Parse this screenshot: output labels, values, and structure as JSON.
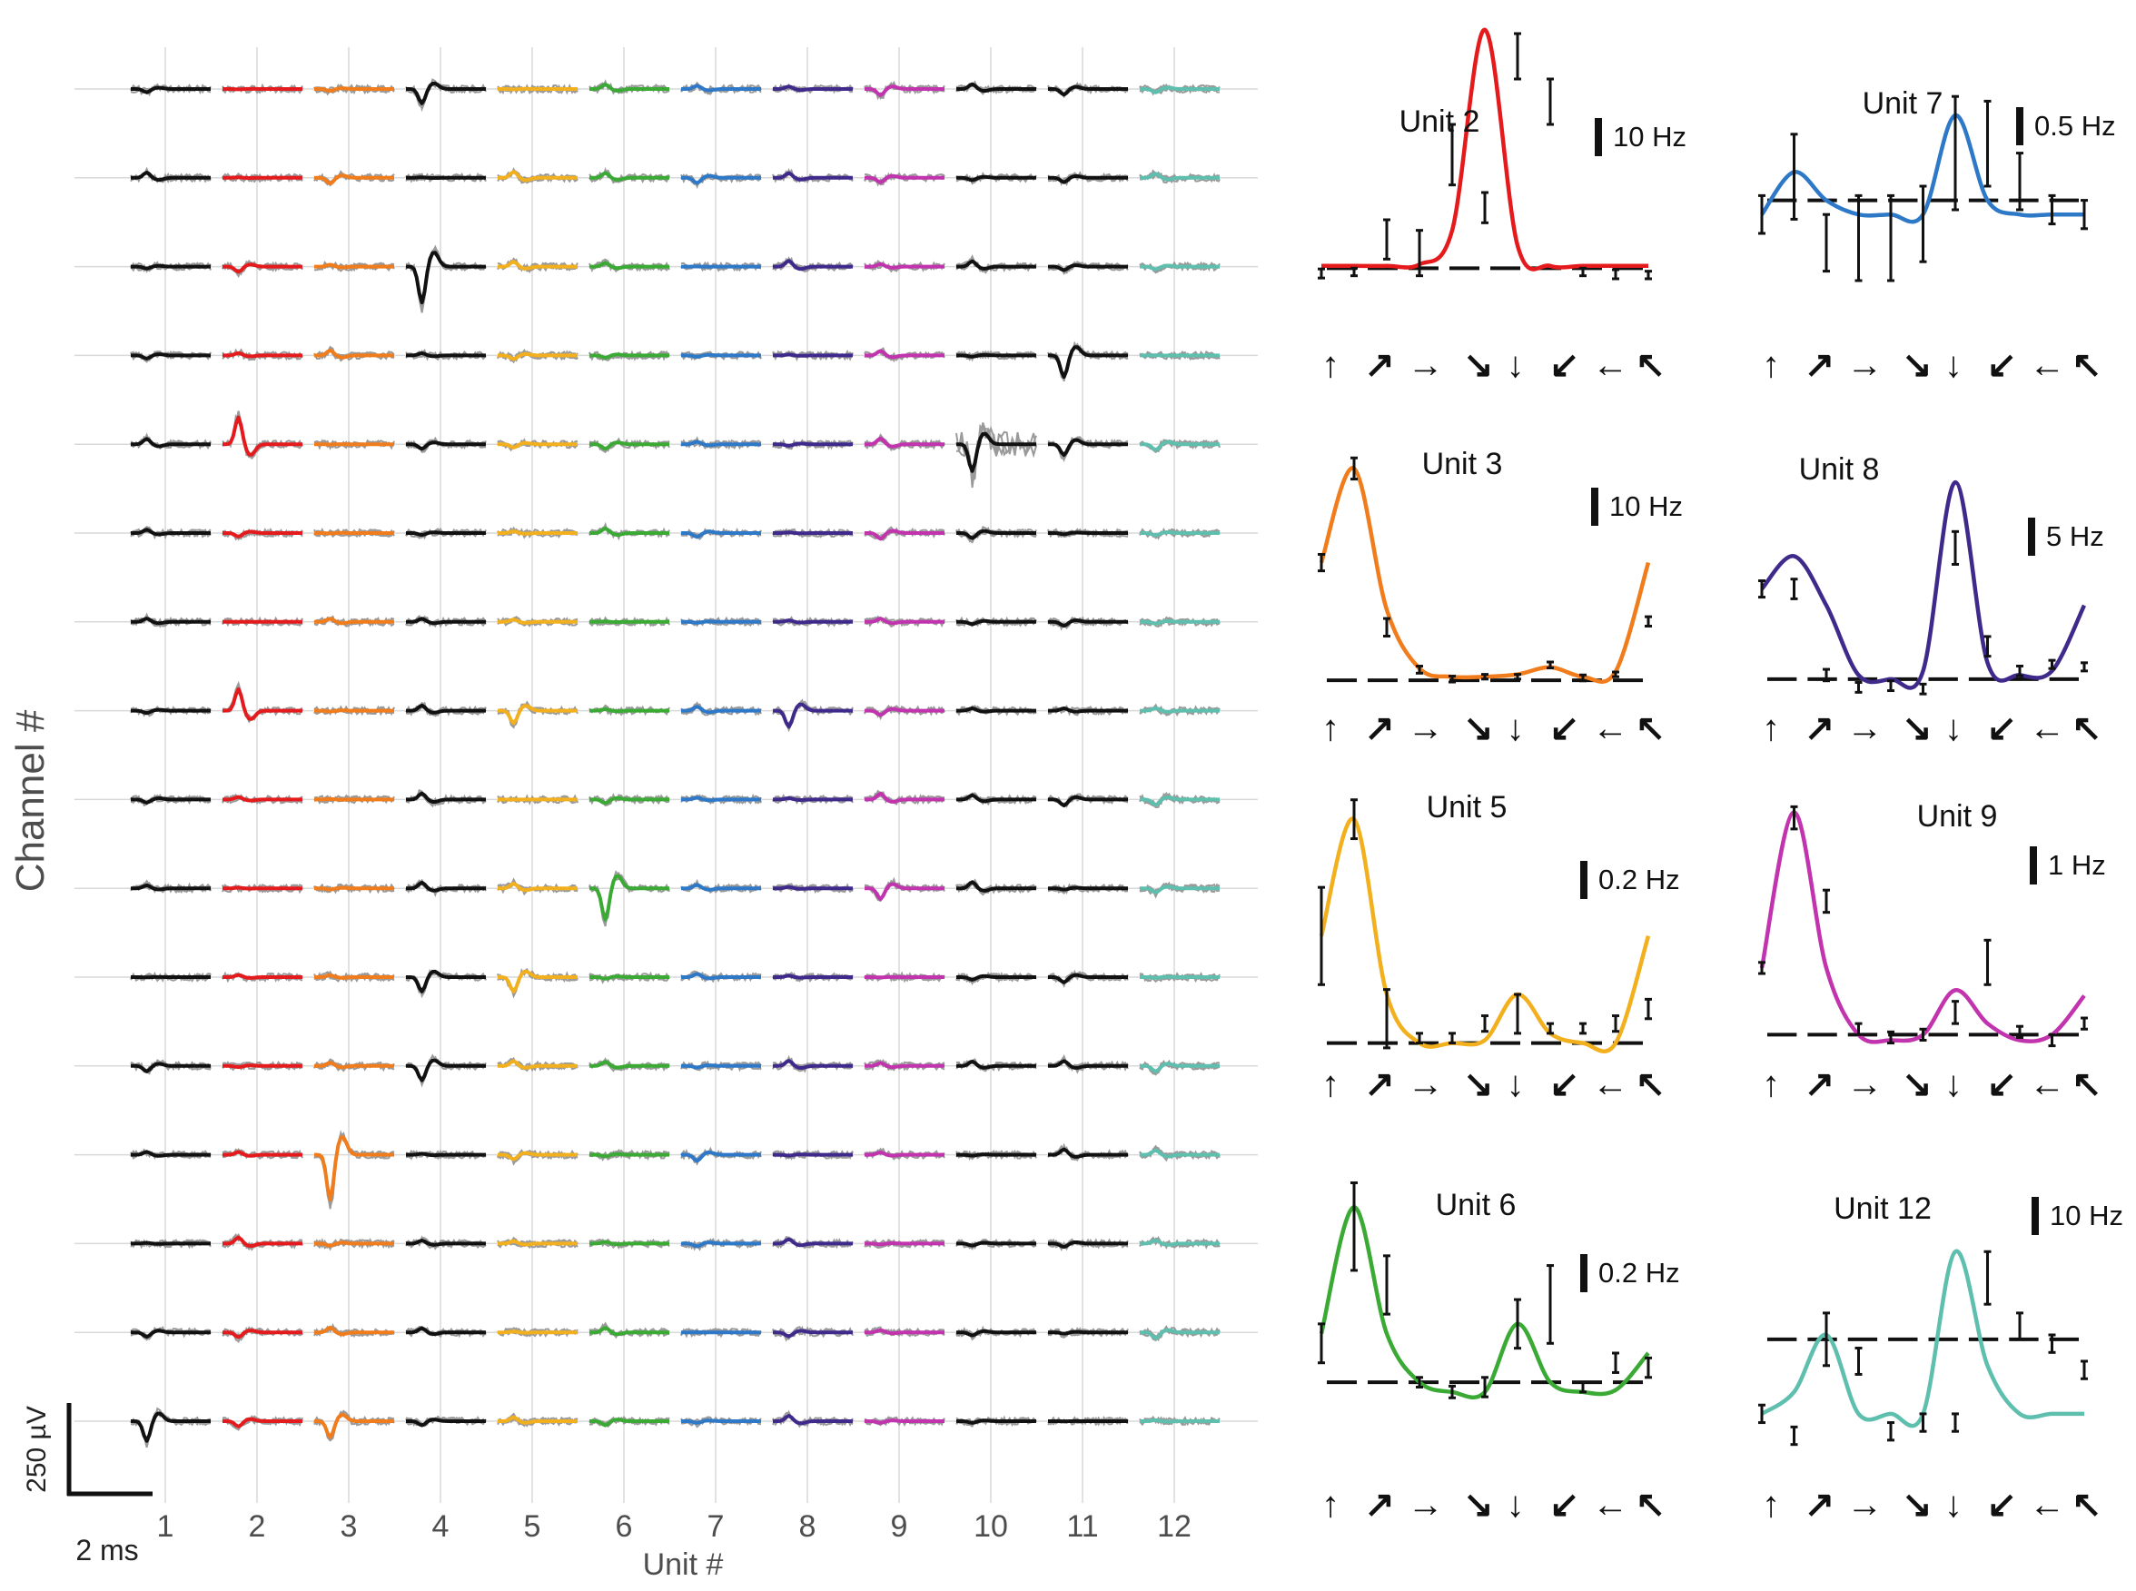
{
  "labels": {
    "ylabel": "Channel #",
    "xlabel": "Unit #",
    "scale_voltage": "250 µV",
    "scale_time": "2 ms"
  },
  "colors": {
    "grid": "#d9d9d9",
    "trace_gray": "#9a9a9a",
    "units": [
      "#111111",
      "#e41a1c",
      "#f07c1c",
      "#111111",
      "#f2b01e",
      "#3aaa35",
      "#2e78c8",
      "#3f2a8c",
      "#c233ae",
      "#111111",
      "#111111",
      "#5ebfae"
    ]
  },
  "chart_data": [
    {
      "type": "waveform-grid",
      "title": "",
      "xlabel": "Unit #",
      "ylabel": "Channel #",
      "units": [
        "1",
        "2",
        "3",
        "4",
        "5",
        "6",
        "7",
        "8",
        "9",
        "10",
        "11",
        "12"
      ],
      "channels": 16,
      "scale_bar": {
        "voltage": "250 µV",
        "time": "2 ms"
      }
    },
    {
      "type": "line",
      "panel": "tuning",
      "title": "Unit 2",
      "scale": "10 Hz",
      "color": "#e41a1c",
      "directions": [
        "↑",
        "↗",
        "→",
        "↘",
        "↓",
        "↙",
        "←",
        "↖"
      ],
      "x": [
        0,
        0.7,
        1.4,
        2.1,
        2.8,
        3.5,
        4.2,
        4.9,
        5.6,
        6.3,
        7.0
      ],
      "curve": [
        0.3,
        0.3,
        0.3,
        0.5,
        5.0,
        31.5,
        3.0,
        0.3,
        0.3,
        0.3,
        0.3
      ],
      "points": [
        -0.7,
        -0.5,
        3.8,
        2.0,
        15.0,
        8.0,
        28.0,
        22.0,
        -0.5,
        -0.8,
        -0.9
      ],
      "errors": [
        0.6,
        0.5,
        2.6,
        3.0,
        4.0,
        2.0,
        3.0,
        3.0,
        0.5,
        0.6,
        0.5
      ],
      "baseline": 0,
      "ylim": [
        -2,
        34
      ]
    },
    {
      "type": "line",
      "panel": "tuning",
      "title": "Unit 3",
      "scale": "10 Hz",
      "color": "#f07c1c",
      "directions": [
        "↑",
        "↗",
        "→",
        "↘",
        "↓",
        "↙",
        "←",
        "↖"
      ],
      "x": [
        0,
        0.7,
        1.4,
        2.1,
        2.8,
        3.5,
        4.2,
        4.9,
        5.6,
        6.3,
        7.0
      ],
      "curve": [
        20,
        36,
        12,
        2,
        0.6,
        0.6,
        1.0,
        2.2,
        0.6,
        1.5,
        20
      ],
      "points": [
        20,
        36,
        9,
        1.8,
        0.2,
        0.6,
        0.6,
        2.6,
        0.4,
        1.0,
        10
      ],
      "errors": [
        1.4,
        1.8,
        1.5,
        0.6,
        0.5,
        0.4,
        0.4,
        0.5,
        0.5,
        0.4,
        0.8
      ],
      "baseline": 0,
      "ylim": [
        -4,
        40
      ]
    },
    {
      "type": "line",
      "panel": "tuning",
      "title": "Unit 5",
      "scale": "0.2 Hz",
      "color": "#f2b01e",
      "directions": [
        "↑",
        "↗",
        "→",
        "↘",
        "↓",
        "↙",
        "←",
        "↖"
      ],
      "x": [
        0,
        0.7,
        1.4,
        2.1,
        2.8,
        3.5,
        4.2,
        4.9,
        5.6,
        6.3,
        7.0
      ],
      "curve": [
        1.1,
        2.3,
        0.5,
        0.0,
        0.0,
        0.03,
        0.5,
        0.1,
        0.0,
        0.0,
        1.1
      ],
      "points": [
        1.1,
        2.3,
        0.25,
        0.05,
        0.05,
        0.2,
        0.3,
        0.15,
        0.15,
        0.2,
        0.35
      ],
      "errors": [
        0.5,
        0.2,
        0.3,
        0.05,
        0.05,
        0.08,
        0.2,
        0.05,
        0.05,
        0.08,
        0.1
      ],
      "baseline": 0,
      "ylim": [
        -0.2,
        2.6
      ]
    },
    {
      "type": "line",
      "panel": "tuning",
      "title": "Unit 6",
      "scale": "0.2 Hz",
      "color": "#3aaa35",
      "directions": [
        "↑",
        "↗",
        "→",
        "↘",
        "↓",
        "↙",
        "←",
        "↖"
      ],
      "x": [
        0,
        0.7,
        1.4,
        2.1,
        2.8,
        3.5,
        4.2,
        4.9,
        5.6,
        6.3,
        7.0
      ],
      "curve": [
        0.5,
        1.8,
        0.5,
        0.0,
        -0.1,
        -0.1,
        0.6,
        0.0,
        -0.1,
        -0.08,
        0.3
      ],
      "points": [
        0.4,
        1.6,
        1.0,
        0.0,
        -0.1,
        -0.05,
        0.6,
        0.8,
        -0.05,
        0.2,
        0.15
      ],
      "errors": [
        0.2,
        0.45,
        0.3,
        0.05,
        0.06,
        0.1,
        0.25,
        0.4,
        0.05,
        0.1,
        0.1
      ],
      "baseline": 0,
      "ylim": [
        -0.4,
        2.4
      ]
    },
    {
      "type": "line",
      "panel": "tuning",
      "title": "Unit 7",
      "scale": "0.5 Hz",
      "color": "#2e78c8",
      "directions": [
        "↑",
        "↗",
        "→",
        "↘",
        "↓",
        "↙",
        "←",
        "↖"
      ],
      "x": [
        0,
        0.7,
        1.4,
        2.1,
        2.8,
        3.5,
        4.2,
        4.9,
        5.6,
        6.3,
        7.0
      ],
      "curve": [
        -0.3,
        0.6,
        0.0,
        -0.3,
        -0.3,
        -0.3,
        1.8,
        0.0,
        -0.3,
        -0.3,
        -0.3
      ],
      "points": [
        -0.3,
        0.5,
        -0.9,
        -0.8,
        -0.8,
        -0.5,
        1.0,
        1.2,
        0.4,
        -0.2,
        -0.3
      ],
      "errors": [
        0.4,
        0.9,
        0.6,
        0.9,
        0.9,
        0.8,
        1.2,
        0.9,
        0.6,
        0.3,
        0.3
      ],
      "baseline": 0,
      "ylim": [
        -2.2,
        2.8
      ]
    },
    {
      "type": "line",
      "panel": "tuning",
      "title": "Unit 8",
      "scale": "5 Hz",
      "color": "#3f2a8c",
      "directions": [
        "↑",
        "↗",
        "→",
        "↘",
        "↓",
        "↙",
        "←",
        "↖"
      ],
      "x": [
        0,
        0.7,
        1.4,
        2.1,
        2.8,
        3.5,
        4.2,
        4.9,
        5.6,
        6.3,
        7.0
      ],
      "curve": [
        11,
        15,
        9,
        0.5,
        0,
        1,
        24,
        2,
        0.5,
        1,
        9
      ],
      "points": [
        11,
        11,
        0.5,
        -1,
        -0.8,
        -1.2,
        16,
        4,
        1,
        1.8,
        1.5
      ],
      "errors": [
        1.0,
        1.2,
        0.7,
        0.6,
        0.6,
        0.6,
        2.0,
        1.2,
        0.6,
        0.5,
        0.5
      ],
      "baseline": 0,
      "ylim": [
        -3,
        28
      ]
    },
    {
      "type": "line",
      "panel": "tuning",
      "title": "Unit 9",
      "scale": "1 Hz",
      "color": "#c233ae",
      "directions": [
        "↑",
        "↗",
        "→",
        "↘",
        "↓",
        "↙",
        "←",
        "↖"
      ],
      "x": [
        0,
        0.7,
        1.4,
        2.1,
        2.8,
        3.5,
        4.2,
        4.9,
        5.6,
        6.3,
        7.0
      ],
      "curve": [
        1.2,
        4.0,
        1.2,
        0.0,
        -0.1,
        0.0,
        0.8,
        0.2,
        -0.1,
        0.0,
        0.7
      ],
      "points": [
        1.2,
        3.9,
        2.4,
        0.1,
        -0.05,
        0.0,
        0.4,
        1.3,
        0.05,
        -0.1,
        0.2
      ],
      "errors": [
        0.1,
        0.2,
        0.2,
        0.1,
        0.1,
        0.1,
        0.2,
        0.4,
        0.1,
        0.1,
        0.1
      ],
      "baseline": 0,
      "ylim": [
        -0.5,
        4.4
      ]
    },
    {
      "type": "line",
      "panel": "tuning",
      "title": "Unit 12",
      "scale": "10 Hz",
      "color": "#5ebfae",
      "directions": [
        "↑",
        "↗",
        "→",
        "↘",
        "↓",
        "↙",
        "←",
        "↖"
      ],
      "x": [
        0,
        0.7,
        1.4,
        2.1,
        2.8,
        3.5,
        4.2,
        4.9,
        5.6,
        6.3,
        7.0
      ],
      "curve": [
        -17,
        -12,
        1,
        -17,
        -17,
        -17,
        20,
        -6,
        -17,
        -17,
        -17
      ],
      "points": [
        -17,
        -22,
        0,
        -5,
        -21,
        -19,
        -19,
        14,
        3,
        -1,
        -7
      ],
      "errors": [
        2.0,
        2.0,
        6.0,
        3.0,
        2.0,
        2.0,
        2.0,
        6.0,
        3.0,
        2.0,
        2.0
      ],
      "baseline": 0,
      "ylim": [
        -28,
        30
      ]
    }
  ]
}
